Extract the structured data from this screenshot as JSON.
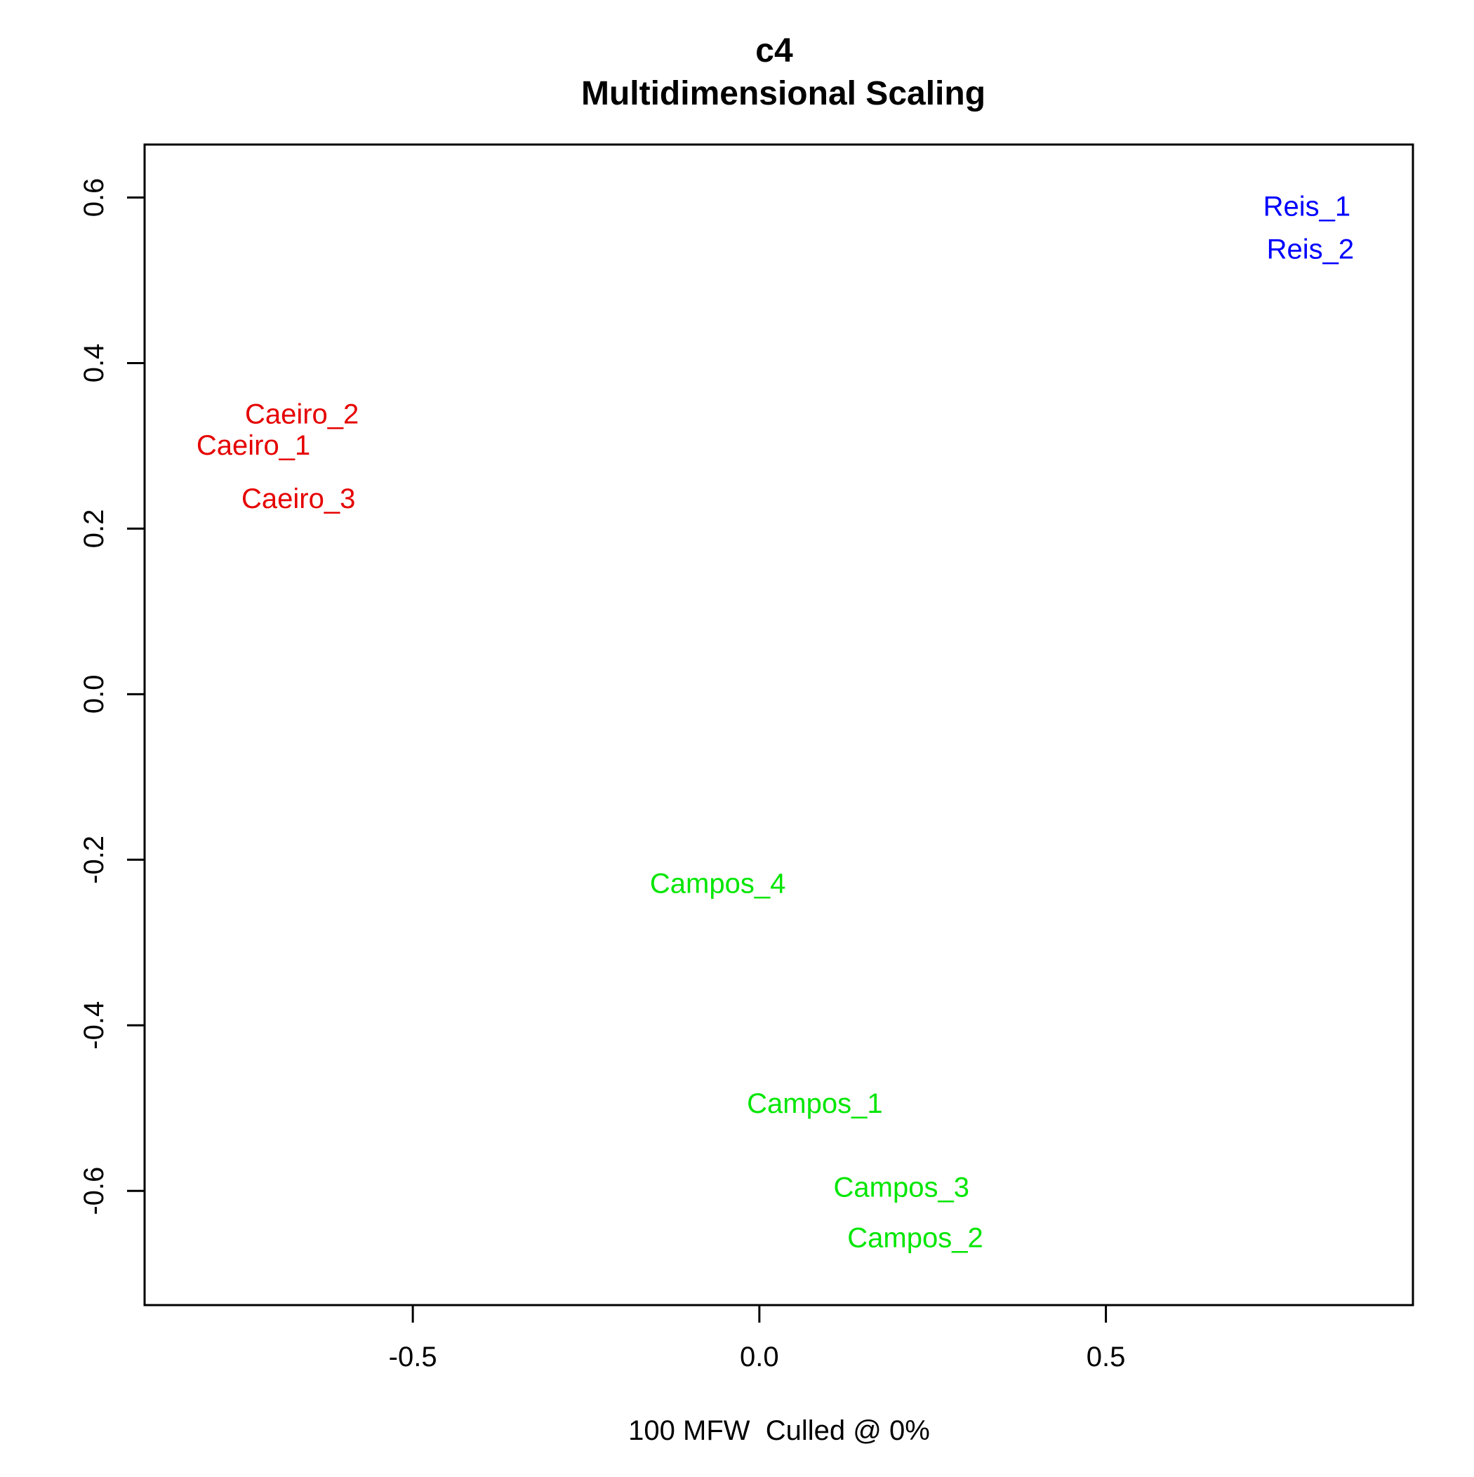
{
  "chart_data": {
    "type": "scatter",
    "title": "c4",
    "subtitle": "Multidimensional Scaling",
    "xlabel": "100 MFW  Culled @ 0%",
    "ylabel": "",
    "xlim": [
      -0.887,
      0.943
    ],
    "ylim": [
      -0.738,
      0.664
    ],
    "grid": false,
    "legend": "none",
    "x_ticks": [
      -0.5,
      0.0,
      0.5
    ],
    "x_tick_labels": [
      "-0.5",
      "0.0",
      "0.5"
    ],
    "y_ticks": [
      -0.6,
      -0.4,
      -0.2,
      0.0,
      0.2,
      0.4,
      0.6
    ],
    "y_tick_labels": [
      "-0.6",
      "-0.4",
      "-0.2",
      "0.0",
      "0.2",
      "0.4",
      "0.6"
    ],
    "points": [
      {
        "label": "Reis_1",
        "x": 0.79,
        "y": 0.59,
        "color": "#0000ff"
      },
      {
        "label": "Reis_2",
        "x": 0.795,
        "y": 0.538,
        "color": "#0000ff"
      },
      {
        "label": "Caeiro_2",
        "x": -0.66,
        "y": 0.339,
        "color": "#e60000"
      },
      {
        "label": "Caeiro_1",
        "x": -0.73,
        "y": 0.301,
        "color": "#e60000"
      },
      {
        "label": "Caeiro_3",
        "x": -0.665,
        "y": 0.237,
        "color": "#e60000"
      },
      {
        "label": "Campos_4",
        "x": -0.06,
        "y": -0.228,
        "color": "#00e600"
      },
      {
        "label": "Campos_1",
        "x": 0.08,
        "y": -0.494,
        "color": "#00e600"
      },
      {
        "label": "Campos_3",
        "x": 0.205,
        "y": -0.595,
        "color": "#00e600"
      },
      {
        "label": "Campos_2",
        "x": 0.225,
        "y": -0.656,
        "color": "#00e600"
      }
    ]
  }
}
